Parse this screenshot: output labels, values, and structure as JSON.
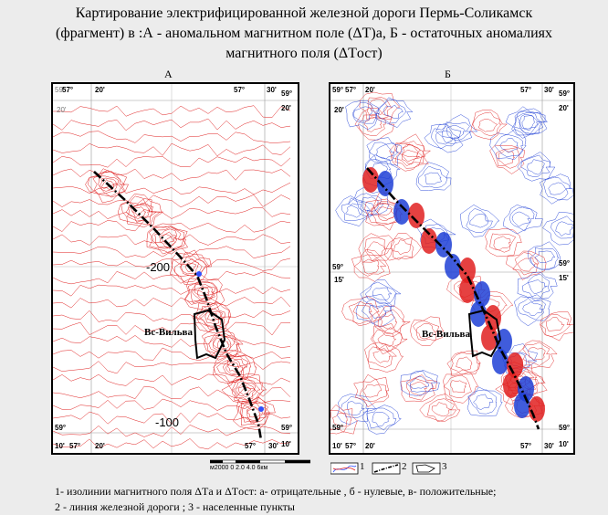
{
  "title": {
    "line1": "Картирование электрифицированной  железной дороги  Пермь-Соликамск",
    "line2": "(фрагмент) в :А - аномальном  магнитном поле  (ΔT)а,  Б -  остаточных аномалиях",
    "line3": "магнитного поля  (ΔTост)"
  },
  "panels": {
    "a": {
      "label": "А",
      "town": "Вс-Вильва",
      "contour_labels": [
        "-200",
        "-100"
      ],
      "coords": {
        "tl_lat": "59°",
        "tl_min": "20'",
        "top_lon1": "57°",
        "top_min1": "20'",
        "top_lon2": "57°",
        "top_min2": "30'",
        "tr_lat": "59°",
        "tr_min": "20'",
        "bl_lat": "59°",
        "bl_min": "10'",
        "bot_lon1": "57°",
        "bot_min1": "20'",
        "bot_lon2": "57°",
        "bot_min2": "30'",
        "br_lat": "59°",
        "br_min": "10'"
      }
    },
    "b": {
      "label": "Б",
      "town": "Вс-Вильва",
      "coords": {
        "tl_lat": "59°",
        "tl_min": "20'",
        "top_lon1": "57°",
        "top_min1": "20'",
        "top_lon2": "57°",
        "top_min2": "30'",
        "tr_lat": "59°",
        "tr_min": "20'",
        "ml_lat": "59°",
        "ml_min": "15'",
        "mr_lat": "59°",
        "mr_min": "15'",
        "bl_lat": "59°",
        "bl_min": "10'",
        "bot_lon1": "57°",
        "bot_min1": "20'",
        "bot_lon2": "57°",
        "bot_min2": "30'",
        "br_lat": "59°",
        "br_min": "10'"
      }
    }
  },
  "scale": {
    "text": "м2000   0    2.0   4.0     6км"
  },
  "legend_items": [
    "1",
    "2",
    "3"
  ],
  "legend": {
    "line1": "1- изолинии магнитного поля ΔTа и ΔTост:  а- отрицательные , б - нулевые, в- положительные;",
    "line2": "2 - линия железной дороги ; 3 - населенные пункты"
  },
  "colors": {
    "negative": "#1f3fd6",
    "positive": "#e02020",
    "background": "#ececec"
  }
}
